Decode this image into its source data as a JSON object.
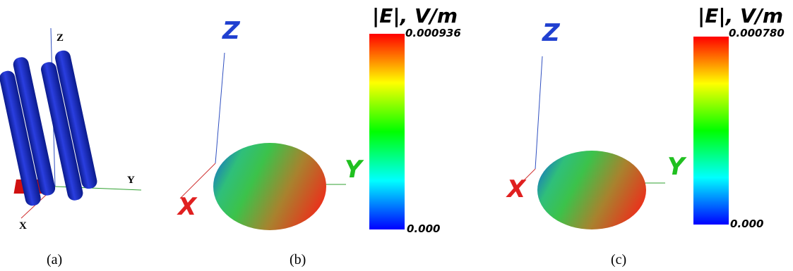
{
  "panels": [
    {
      "caption": "(a)",
      "axes": {
        "z": "Z",
        "y": "Y",
        "x": "X"
      }
    },
    {
      "caption": "(b)",
      "axes": {
        "z": "Z",
        "y": "Y",
        "x": "X"
      },
      "colorbar": {
        "title": "|E|, V/m",
        "max": "0.000936",
        "min": "0.000"
      }
    },
    {
      "caption": "(c)",
      "axes": {
        "z": "Z",
        "y": "Y",
        "x": "X"
      },
      "colorbar": {
        "title": "|E|, V/m",
        "max": "0.000780",
        "min": "0.000"
      }
    }
  ]
}
